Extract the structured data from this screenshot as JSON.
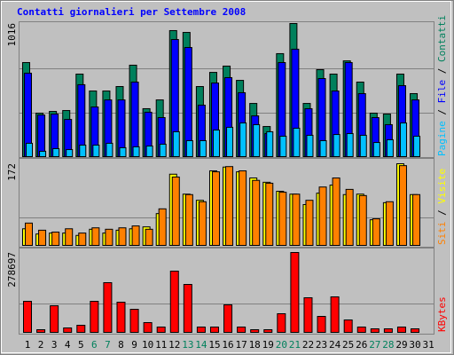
{
  "chart_data": [
    {
      "type": "bar",
      "title": "Contatti giornalieri per Settembre 2008",
      "ylim": [
        0,
        1016
      ],
      "yticks": [
        1016
      ],
      "series": [
        {
          "name": "Contatti",
          "color": "#00805c",
          "values": [
            718,
            332,
            345,
            352,
            630,
            501,
            501,
            535,
            698,
            366,
            433,
            962,
            948,
            535,
            643,
            691,
            582,
            406,
            230,
            786,
            1016,
            406,
            664,
            630,
            731,
            569,
            332,
            325,
            630,
            481,
            0
          ]
        },
        {
          "name": "File",
          "color": "#0000ff",
          "values": [
            637,
            318,
            325,
            284,
            549,
            379,
            433,
            433,
            569,
            339,
            298,
            894,
            833,
            393,
            562,
            603,
            488,
            311,
            176,
            718,
            820,
            366,
            596,
            501,
            718,
            481,
            298,
            244,
            542,
            433,
            0
          ]
        },
        {
          "name": "Pagine",
          "color": "#00c0ff",
          "values": [
            102,
            41,
            61,
            54,
            88,
            88,
            102,
            68,
            75,
            81,
            95,
            190,
            122,
            122,
            203,
            224,
            257,
            244,
            190,
            156,
            217,
            163,
            122,
            169,
            176,
            163,
            108,
            129,
            257,
            156,
            0
          ]
        }
      ]
    },
    {
      "type": "bar",
      "ylim": [
        0,
        172
      ],
      "yticks": [
        172
      ],
      "series": [
        {
          "name": "Visite",
          "color": "#ffff00",
          "values": [
            35,
            24,
            26,
            26,
            21,
            34,
            26,
            32,
            35,
            39,
            67,
            150,
            108,
            95,
            157,
            165,
            155,
            142,
            133,
            114,
            108,
            86,
            110,
            127,
            107,
            108,
            54,
            90,
            172,
            107,
            0
          ]
        },
        {
          "name": "Siti",
          "color": "#ff8000",
          "values": [
            47,
            32,
            28,
            35,
            26,
            37,
            34,
            37,
            41,
            34,
            77,
            144,
            107,
            92,
            155,
            166,
            157,
            137,
            131,
            112,
            108,
            95,
            123,
            142,
            118,
            105,
            56,
            92,
            168,
            107,
            0
          ]
        }
      ]
    },
    {
      "type": "bar",
      "ylim": [
        0,
        278697
      ],
      "yticks": [
        278697
      ],
      "categories": [
        "1",
        "2",
        "3",
        "4",
        "5",
        "6",
        "7",
        "8",
        "9",
        "10",
        "11",
        "12",
        "13",
        "14",
        "15",
        "16",
        "17",
        "18",
        "19",
        "20",
        "21",
        "22",
        "23",
        "24",
        "25",
        "26",
        "27",
        "28",
        "29",
        "30",
        "31"
      ],
      "highlight": [
        5,
        6,
        12,
        13,
        19,
        20,
        26,
        27
      ],
      "highlight_color": "#00805c",
      "series": [
        {
          "name": "KBytes",
          "color": "#ff0000",
          "values": [
            108382,
            9290,
            92899,
            15483,
            24773,
            108382,
            173412,
            105285,
            80513,
            34063,
            18580,
            213668,
            167218,
            18580,
            18580,
            95996,
            18580,
            9290,
            9290,
            65030,
            278697,
            120769,
            55739,
            123865,
            43353,
            18580,
            12387,
            12387,
            18580,
            12387,
            0
          ]
        }
      ]
    }
  ]
}
